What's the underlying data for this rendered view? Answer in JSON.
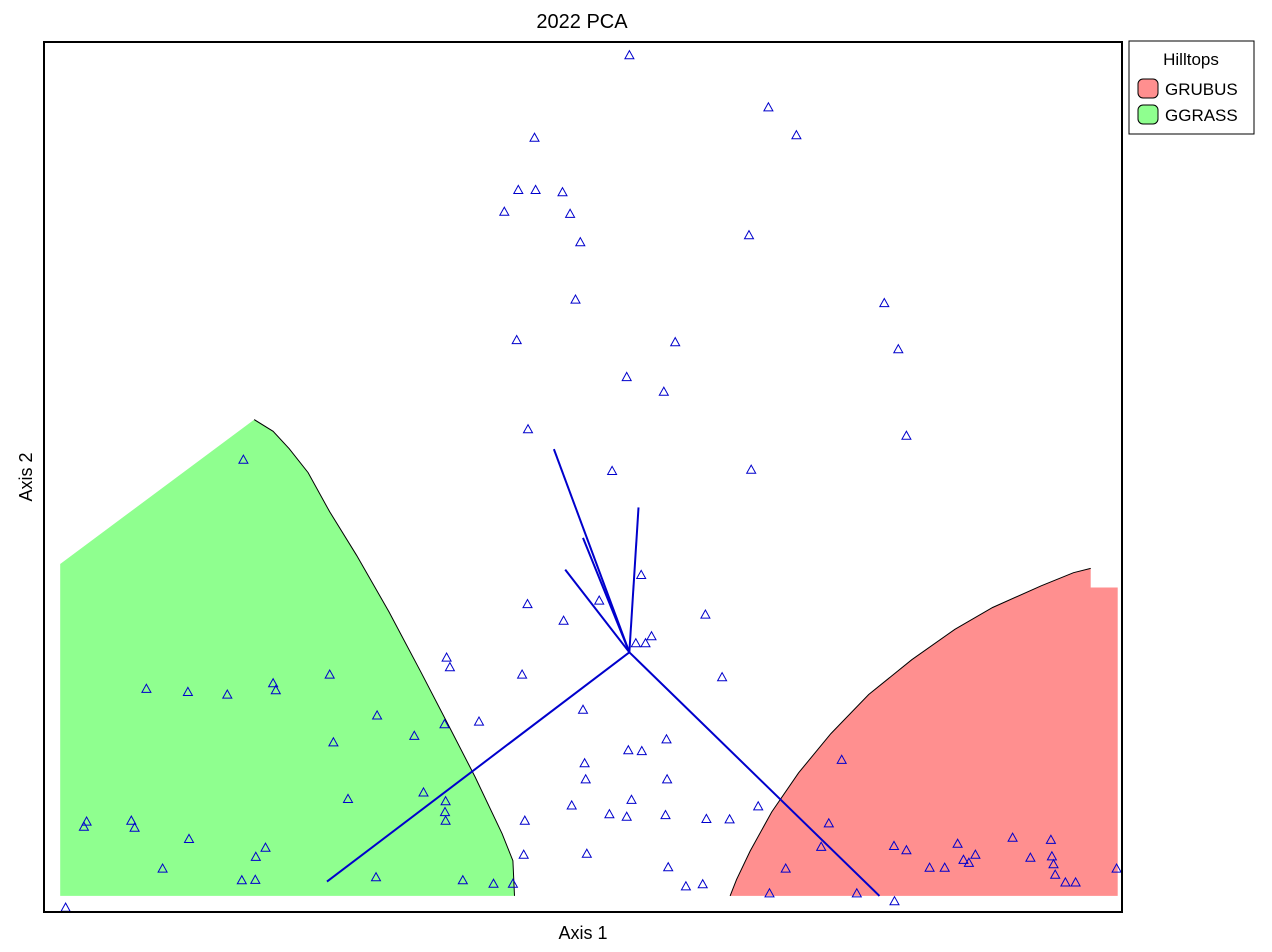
{
  "chart_data": {
    "type": "scatter",
    "title": "2022 PCA",
    "xlabel": "Axis 1",
    "ylabel": "Axis 2",
    "xlim": [
      -1,
      1
    ],
    "ylim": [
      -1,
      1
    ],
    "ticks_shown": false,
    "grid": false,
    "legend": {
      "title": "Hilltops",
      "placement": "outside-top-right",
      "entries": [
        {
          "label": "GRUBUS",
          "color": "#ff8f8f"
        },
        {
          "label": "GGRASS",
          "color": "#8fff8f"
        }
      ]
    },
    "point_marker": "open-triangle",
    "point_color": "#0000cc",
    "vector_color": "#0000cc",
    "vector_origin": [
      0.086,
      -0.403
    ],
    "vectors": [
      {
        "end": [
          -0.475,
          -0.93
        ]
      },
      {
        "end": [
          0.55,
          -0.963
        ]
      },
      {
        "end": [
          0.103,
          -0.07
        ]
      },
      {
        "end": [
          -0.054,
          0.064
        ]
      },
      {
        "end": [
          -0.033,
          -0.213
        ]
      },
      {
        "end": [
          0.0,
          -0.14
        ]
      }
    ],
    "regions": [
      {
        "name": "GGRASS",
        "color": "#8fff8f",
        "boundary": [
          [
            -0.97,
            -0.2
          ],
          [
            -0.61,
            0.132
          ],
          [
            -0.575,
            0.105
          ],
          [
            -0.545,
            0.065
          ],
          [
            -0.51,
            0.01
          ],
          [
            -0.47,
            -0.08
          ],
          [
            -0.42,
            -0.18
          ],
          [
            -0.36,
            -0.31
          ],
          [
            -0.3,
            -0.45
          ],
          [
            -0.25,
            -0.57
          ],
          [
            -0.2,
            -0.69
          ],
          [
            -0.15,
            -0.82
          ],
          [
            -0.13,
            -0.882
          ],
          [
            -0.127,
            -0.963
          ],
          [
            -0.97,
            -0.963
          ]
        ]
      },
      {
        "name": "GRUBUS",
        "color": "#ff8f8f",
        "boundary": [
          [
            0.273,
            -0.963
          ],
          [
            0.285,
            -0.925
          ],
          [
            0.31,
            -0.86
          ],
          [
            0.35,
            -0.77
          ],
          [
            0.4,
            -0.68
          ],
          [
            0.46,
            -0.59
          ],
          [
            0.53,
            -0.5
          ],
          [
            0.61,
            -0.42
          ],
          [
            0.69,
            -0.35
          ],
          [
            0.76,
            -0.3
          ],
          [
            0.85,
            -0.25
          ],
          [
            0.91,
            -0.22
          ],
          [
            0.942,
            -0.21
          ],
          [
            0.942,
            -0.254
          ],
          [
            0.992,
            -0.254
          ],
          [
            0.992,
            -0.963
          ]
        ]
      }
    ],
    "points": [
      [
        0.086,
        0.97
      ],
      [
        0.344,
        0.85
      ],
      [
        0.396,
        0.786
      ],
      [
        -0.09,
        0.78
      ],
      [
        -0.12,
        0.66
      ],
      [
        -0.088,
        0.66
      ],
      [
        -0.038,
        0.655
      ],
      [
        -0.146,
        0.61
      ],
      [
        -0.024,
        0.605
      ],
      [
        0.308,
        0.556
      ],
      [
        -0.005,
        0.54
      ],
      [
        -0.014,
        0.408
      ],
      [
        0.559,
        0.4
      ],
      [
        -0.123,
        0.315
      ],
      [
        0.171,
        0.31
      ],
      [
        0.585,
        0.294
      ],
      [
        0.081,
        0.23
      ],
      [
        0.15,
        0.196
      ],
      [
        -0.102,
        0.11
      ],
      [
        0.6,
        0.095
      ],
      [
        -0.63,
        0.04
      ],
      [
        0.054,
        0.014
      ],
      [
        0.312,
        0.017
      ],
      [
        0.108,
        -0.225
      ],
      [
        -0.103,
        -0.292
      ],
      [
        0.03,
        -0.284
      ],
      [
        0.227,
        -0.316
      ],
      [
        -0.036,
        -0.33
      ],
      [
        0.127,
        -0.366
      ],
      [
        0.098,
        -0.382
      ],
      [
        0.116,
        -0.382
      ],
      [
        -0.253,
        -0.415
      ],
      [
        -0.247,
        -0.437
      ],
      [
        -0.113,
        -0.454
      ],
      [
        0.258,
        -0.46
      ],
      [
        -0.47,
        -0.454
      ],
      [
        -0.575,
        -0.474
      ],
      [
        -0.57,
        -0.49
      ],
      [
        -0.81,
        -0.487
      ],
      [
        -0.66,
        -0.5
      ],
      [
        -0.733,
        -0.494
      ],
      [
        -0.0,
        -0.535
      ],
      [
        -0.382,
        -0.548
      ],
      [
        -0.193,
        -0.562
      ],
      [
        -0.257,
        -0.568
      ],
      [
        -0.313,
        -0.595
      ],
      [
        0.155,
        -0.603
      ],
      [
        -0.463,
        -0.61
      ],
      [
        0.109,
        -0.63
      ],
      [
        0.084,
        -0.628
      ],
      [
        0.003,
        -0.658
      ],
      [
        0.005,
        -0.695
      ],
      [
        0.156,
        -0.695
      ],
      [
        -0.296,
        -0.725
      ],
      [
        0.48,
        -0.65
      ],
      [
        -0.436,
        -0.74
      ],
      [
        -0.255,
        -0.745
      ],
      [
        0.09,
        -0.742
      ],
      [
        -0.021,
        -0.755
      ],
      [
        -0.256,
        -0.77
      ],
      [
        0.325,
        -0.757
      ],
      [
        0.081,
        -0.781
      ],
      [
        0.153,
        -0.777
      ],
      [
        0.049,
        -0.775
      ],
      [
        0.229,
        -0.786
      ],
      [
        0.456,
        -0.796
      ],
      [
        0.272,
        -0.787
      ],
      [
        -0.838,
        -0.79
      ],
      [
        -0.921,
        -0.792
      ],
      [
        -0.255,
        -0.79
      ],
      [
        -0.832,
        -0.806
      ],
      [
        -0.926,
        -0.804
      ],
      [
        -0.108,
        -0.79
      ],
      [
        0.797,
        -0.829
      ],
      [
        0.868,
        -0.834
      ],
      [
        0.695,
        -0.843
      ],
      [
        0.442,
        -0.85
      ],
      [
        0.577,
        -0.848
      ],
      [
        -0.731,
        -0.832
      ],
      [
        -0.589,
        -0.852
      ],
      [
        0.6,
        -0.858
      ],
      [
        -0.11,
        -0.868
      ],
      [
        0.87,
        -0.872
      ],
      [
        0.728,
        -0.868
      ],
      [
        0.007,
        -0.866
      ],
      [
        -0.607,
        -0.873
      ],
      [
        0.706,
        -0.88
      ],
      [
        0.716,
        -0.887
      ],
      [
        -0.78,
        -0.9
      ],
      [
        0.873,
        -0.89
      ],
      [
        0.643,
        -0.898
      ],
      [
        0.671,
        -0.898
      ],
      [
        0.376,
        -0.9
      ],
      [
        0.83,
        -0.875
      ],
      [
        0.99,
        -0.9
      ],
      [
        0.158,
        -0.897
      ],
      [
        0.876,
        -0.914
      ],
      [
        -0.633,
        -0.927
      ],
      [
        -0.608,
        -0.926
      ],
      [
        -0.384,
        -0.92
      ],
      [
        -0.223,
        -0.927
      ],
      [
        -0.166,
        -0.935
      ],
      [
        -0.13,
        -0.935
      ],
      [
        0.222,
        -0.936
      ],
      [
        0.895,
        -0.932
      ],
      [
        0.914,
        -0.932
      ],
      [
        0.191,
        -0.941
      ],
      [
        0.346,
        -0.957
      ],
      [
        0.508,
        -0.957
      ],
      [
        0.578,
        -0.975
      ],
      [
        -0.96,
        -0.99
      ]
    ]
  }
}
